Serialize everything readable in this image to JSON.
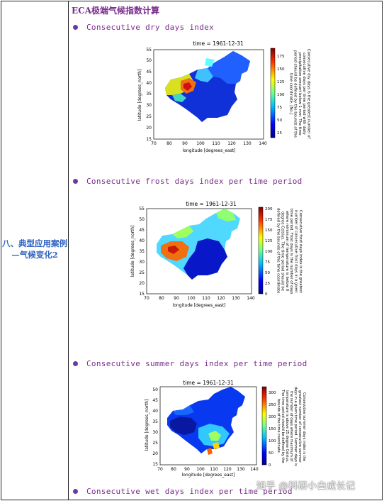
{
  "left_label": "八、典型应用案例—气候变化2",
  "section_title": "ECA极端气候指数计算",
  "items": [
    {
      "label": "Consecutive dry days index"
    },
    {
      "label": "Consecutive frost days index per time period"
    },
    {
      "label": "Consecutive summer days index per time period"
    },
    {
      "label": "Consecutive wet days index per time period"
    }
  ],
  "plots": [
    {
      "title": "time = 1961-12-31",
      "xlabel": "longitude [degrees_east]",
      "ylabel": "latitude [degrees_north]",
      "xticks": [
        "70",
        "80",
        "90",
        "100",
        "110",
        "120",
        "130",
        "140"
      ],
      "yticks": [
        "55",
        "50",
        "45",
        "40",
        "35",
        "30",
        "25",
        "20",
        "15"
      ],
      "cbar_ticks": [
        "175",
        "150",
        "125",
        "100",
        "75",
        "50",
        "25"
      ],
      "cbar_label": "Consecutive dry days is the greatest number of consecutive days per time period with daily precipitation amount below 1 mm. The time period should be defined by the bounds of the time coordinate. [No.]",
      "colormap": "jet"
    },
    {
      "title": "time = 1961-12-31",
      "xlabel": "longitude [degrees_east]",
      "ylabel": "latitude [degrees_north]",
      "xticks": [
        "70",
        "80",
        "90",
        "100",
        "110",
        "120",
        "130",
        "140"
      ],
      "yticks": [
        "55",
        "50",
        "45",
        "40",
        "35",
        "30",
        "25",
        "20",
        "15"
      ],
      "cbar_ticks": [
        "200",
        "175",
        "150",
        "125",
        "100",
        "75",
        "50",
        "25",
        "0"
      ],
      "cbar_label": "Consecutive frost days index is the greatest number of consecutive frost days in a given time period. Frost days is the number of days where minimum of temperature is below 0 degree Celsius. The time period should be defined by the bounds of the time coordinate.",
      "colormap": "jet"
    },
    {
      "title": "time = 1961-12-31",
      "xlabel": "longitude [degrees_east]",
      "ylabel": "latitude [degrees_north]",
      "xticks": [
        "70",
        "80",
        "90",
        "100",
        "110",
        "120",
        "130",
        "140"
      ],
      "yticks": [
        "50",
        "45",
        "40",
        "35",
        "30",
        "25",
        "20",
        "15"
      ],
      "cbar_ticks": [
        "300",
        "250",
        "200",
        "150",
        "100",
        "50",
        "0"
      ],
      "cbar_label": "Consecutive summer days index is the greatest number of consecutive summer days in a given time period. Summer days is the number of days where maximum of temperature is above 25 degree Celsius. The time period should be defined by the bounds of the time coordinate.",
      "colormap": "jet"
    }
  ],
  "watermark": "知乎 @科研小白成长记"
}
